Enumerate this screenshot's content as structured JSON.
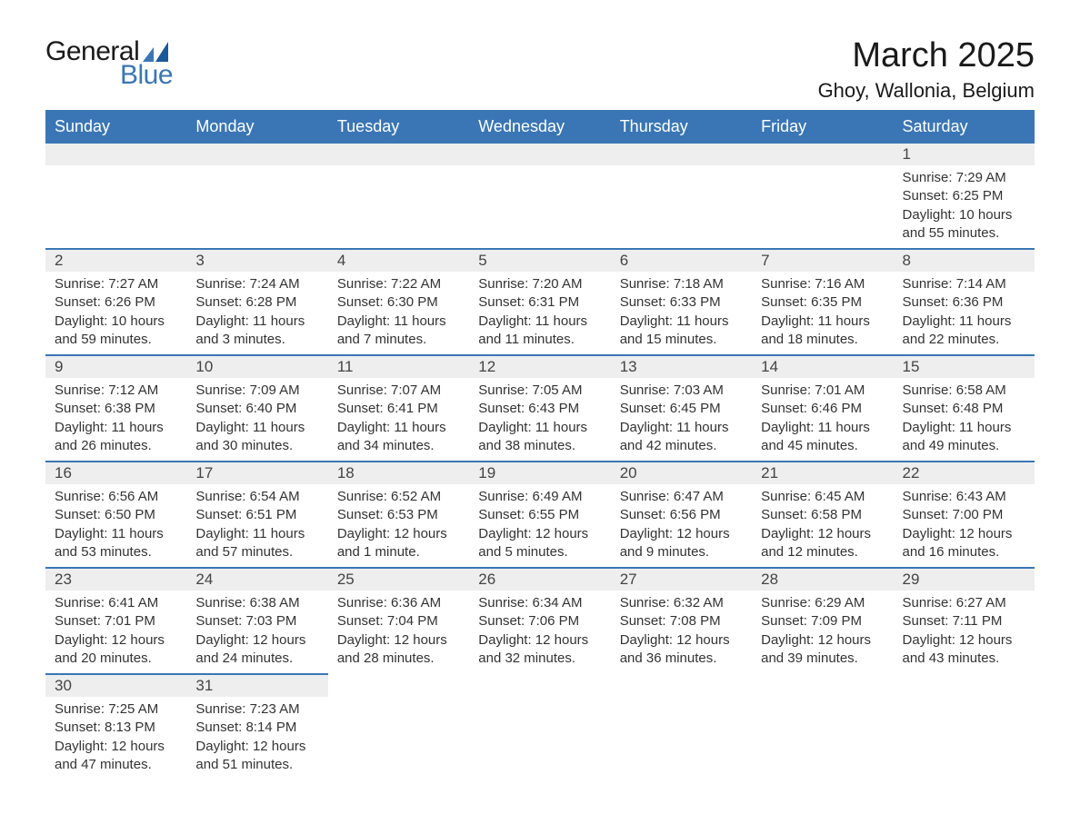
{
  "logo": {
    "text_general": "General",
    "text_blue": "Blue",
    "primary_color": "#3a76b5",
    "dark_color": "#1a5a9a"
  },
  "header": {
    "month_title": "March 2025",
    "location": "Ghoy, Wallonia, Belgium"
  },
  "styling": {
    "header_bg": "#3a76b5",
    "header_text": "#ffffff",
    "daynum_bg": "#eeeeee",
    "row_divider": "#3a76b5",
    "body_text": "#333333",
    "week_labels": [
      "Sunday",
      "Monday",
      "Tuesday",
      "Wednesday",
      "Thursday",
      "Friday",
      "Saturday"
    ]
  },
  "labels": {
    "sunrise": "Sunrise:",
    "sunset": "Sunset:",
    "daylight": "Daylight:"
  },
  "calendar": {
    "weeks": [
      [
        {
          "day": "",
          "sunrise": "",
          "sunset": "",
          "daylight": ""
        },
        {
          "day": "",
          "sunrise": "",
          "sunset": "",
          "daylight": ""
        },
        {
          "day": "",
          "sunrise": "",
          "sunset": "",
          "daylight": ""
        },
        {
          "day": "",
          "sunrise": "",
          "sunset": "",
          "daylight": ""
        },
        {
          "day": "",
          "sunrise": "",
          "sunset": "",
          "daylight": ""
        },
        {
          "day": "",
          "sunrise": "",
          "sunset": "",
          "daylight": ""
        },
        {
          "day": "1",
          "sunrise": "7:29 AM",
          "sunset": "6:25 PM",
          "daylight": "10 hours and 55 minutes."
        }
      ],
      [
        {
          "day": "2",
          "sunrise": "7:27 AM",
          "sunset": "6:26 PM",
          "daylight": "10 hours and 59 minutes."
        },
        {
          "day": "3",
          "sunrise": "7:24 AM",
          "sunset": "6:28 PM",
          "daylight": "11 hours and 3 minutes."
        },
        {
          "day": "4",
          "sunrise": "7:22 AM",
          "sunset": "6:30 PM",
          "daylight": "11 hours and 7 minutes."
        },
        {
          "day": "5",
          "sunrise": "7:20 AM",
          "sunset": "6:31 PM",
          "daylight": "11 hours and 11 minutes."
        },
        {
          "day": "6",
          "sunrise": "7:18 AM",
          "sunset": "6:33 PM",
          "daylight": "11 hours and 15 minutes."
        },
        {
          "day": "7",
          "sunrise": "7:16 AM",
          "sunset": "6:35 PM",
          "daylight": "11 hours and 18 minutes."
        },
        {
          "day": "8",
          "sunrise": "7:14 AM",
          "sunset": "6:36 PM",
          "daylight": "11 hours and 22 minutes."
        }
      ],
      [
        {
          "day": "9",
          "sunrise": "7:12 AM",
          "sunset": "6:38 PM",
          "daylight": "11 hours and 26 minutes."
        },
        {
          "day": "10",
          "sunrise": "7:09 AM",
          "sunset": "6:40 PM",
          "daylight": "11 hours and 30 minutes."
        },
        {
          "day": "11",
          "sunrise": "7:07 AM",
          "sunset": "6:41 PM",
          "daylight": "11 hours and 34 minutes."
        },
        {
          "day": "12",
          "sunrise": "7:05 AM",
          "sunset": "6:43 PM",
          "daylight": "11 hours and 38 minutes."
        },
        {
          "day": "13",
          "sunrise": "7:03 AM",
          "sunset": "6:45 PM",
          "daylight": "11 hours and 42 minutes."
        },
        {
          "day": "14",
          "sunrise": "7:01 AM",
          "sunset": "6:46 PM",
          "daylight": "11 hours and 45 minutes."
        },
        {
          "day": "15",
          "sunrise": "6:58 AM",
          "sunset": "6:48 PM",
          "daylight": "11 hours and 49 minutes."
        }
      ],
      [
        {
          "day": "16",
          "sunrise": "6:56 AM",
          "sunset": "6:50 PM",
          "daylight": "11 hours and 53 minutes."
        },
        {
          "day": "17",
          "sunrise": "6:54 AM",
          "sunset": "6:51 PM",
          "daylight": "11 hours and 57 minutes."
        },
        {
          "day": "18",
          "sunrise": "6:52 AM",
          "sunset": "6:53 PM",
          "daylight": "12 hours and 1 minute."
        },
        {
          "day": "19",
          "sunrise": "6:49 AM",
          "sunset": "6:55 PM",
          "daylight": "12 hours and 5 minutes."
        },
        {
          "day": "20",
          "sunrise": "6:47 AM",
          "sunset": "6:56 PM",
          "daylight": "12 hours and 9 minutes."
        },
        {
          "day": "21",
          "sunrise": "6:45 AM",
          "sunset": "6:58 PM",
          "daylight": "12 hours and 12 minutes."
        },
        {
          "day": "22",
          "sunrise": "6:43 AM",
          "sunset": "7:00 PM",
          "daylight": "12 hours and 16 minutes."
        }
      ],
      [
        {
          "day": "23",
          "sunrise": "6:41 AM",
          "sunset": "7:01 PM",
          "daylight": "12 hours and 20 minutes."
        },
        {
          "day": "24",
          "sunrise": "6:38 AM",
          "sunset": "7:03 PM",
          "daylight": "12 hours and 24 minutes."
        },
        {
          "day": "25",
          "sunrise": "6:36 AM",
          "sunset": "7:04 PM",
          "daylight": "12 hours and 28 minutes."
        },
        {
          "day": "26",
          "sunrise": "6:34 AM",
          "sunset": "7:06 PM",
          "daylight": "12 hours and 32 minutes."
        },
        {
          "day": "27",
          "sunrise": "6:32 AM",
          "sunset": "7:08 PM",
          "daylight": "12 hours and 36 minutes."
        },
        {
          "day": "28",
          "sunrise": "6:29 AM",
          "sunset": "7:09 PM",
          "daylight": "12 hours and 39 minutes."
        },
        {
          "day": "29",
          "sunrise": "6:27 AM",
          "sunset": "7:11 PM",
          "daylight": "12 hours and 43 minutes."
        }
      ],
      [
        {
          "day": "30",
          "sunrise": "7:25 AM",
          "sunset": "8:13 PM",
          "daylight": "12 hours and 47 minutes."
        },
        {
          "day": "31",
          "sunrise": "7:23 AM",
          "sunset": "8:14 PM",
          "daylight": "12 hours and 51 minutes."
        },
        {
          "day": "",
          "sunrise": "",
          "sunset": "",
          "daylight": ""
        },
        {
          "day": "",
          "sunrise": "",
          "sunset": "",
          "daylight": ""
        },
        {
          "day": "",
          "sunrise": "",
          "sunset": "",
          "daylight": ""
        },
        {
          "day": "",
          "sunrise": "",
          "sunset": "",
          "daylight": ""
        },
        {
          "day": "",
          "sunrise": "",
          "sunset": "",
          "daylight": ""
        }
      ]
    ]
  }
}
